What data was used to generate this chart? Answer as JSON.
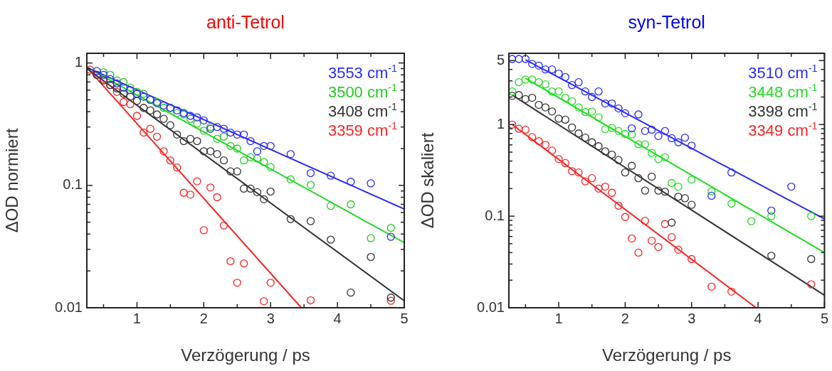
{
  "chart_data": [
    {
      "type": "scatter",
      "title": "anti-Tetrol",
      "xlabel": "Verzögerung / ps",
      "ylabel": "ΔOD normiert",
      "log": "y",
      "marker": "circle",
      "legend": "top right",
      "xlim": [
        0.25,
        5
      ],
      "xticks": [
        {
          "value": 0.5,
          "label": null
        },
        1,
        {
          "value": 1.5,
          "label": null
        },
        2,
        {
          "value": 2.5,
          "label": null
        },
        3,
        {
          "value": 3.5,
          "label": null
        },
        4,
        {
          "value": 4.5,
          "label": null
        },
        5
      ],
      "ylim": [
        0.01,
        1.2
      ],
      "yticks": [
        0.01,
        {
          "value": 0.02,
          "label": null
        },
        {
          "value": 0.03,
          "label": null
        },
        {
          "value": 0.04,
          "label": null
        },
        {
          "value": 0.05,
          "label": null
        },
        {
          "value": 0.06,
          "label": null
        },
        {
          "value": 0.07,
          "label": null
        },
        {
          "value": 0.08,
          "label": null
        },
        {
          "value": 0.09,
          "label": null
        },
        0.1,
        {
          "value": 0.2,
          "label": null
        },
        {
          "value": 0.3,
          "label": null
        },
        {
          "value": 0.4,
          "label": null
        },
        {
          "value": 0.5,
          "label": null
        },
        {
          "value": 0.6,
          "label": null
        },
        {
          "value": 0.7,
          "label": null
        },
        {
          "value": 0.8,
          "label": null
        },
        {
          "value": 0.9,
          "label": null
        },
        1
      ],
      "series": [
        {
          "name": "3553 cm$^{-1}$",
          "color": "#2b2bff",
          "x": [
            0.4,
            0.5,
            0.6,
            0.7,
            0.8,
            0.9,
            1.0,
            1.1,
            1.2,
            1.3,
            1.4,
            1.5,
            1.6,
            1.7,
            1.8,
            1.9,
            2.0,
            2.1,
            2.2,
            2.3,
            2.4,
            2.5,
            2.6,
            2.7,
            2.8,
            2.9,
            3.0,
            3.3,
            3.6,
            3.9,
            4.2,
            4.5,
            4.8
          ],
          "values": [
            0.86,
            0.8,
            0.74,
            0.68,
            0.63,
            0.6,
            0.56,
            0.53,
            0.5,
            0.47,
            0.45,
            0.43,
            0.41,
            0.39,
            0.37,
            0.36,
            0.34,
            0.29,
            0.3,
            0.29,
            0.27,
            0.26,
            0.26,
            0.23,
            0.19,
            0.21,
            0.21,
            0.18,
            0.126,
            0.12,
            0.107,
            0.104,
            0.038
          ]
        },
        {
          "name": "3500 cm$^{-1}$",
          "color": "#22cc22",
          "x": [
            0.5,
            0.6,
            0.7,
            0.8,
            0.9,
            1.0,
            1.1,
            1.2,
            1.3,
            1.4,
            1.5,
            1.6,
            1.7,
            1.8,
            1.9,
            2.0,
            2.1,
            2.2,
            2.3,
            2.4,
            2.5,
            2.6,
            2.7,
            2.8,
            2.9,
            3.0,
            3.3,
            3.6,
            3.9,
            4.2,
            4.5,
            4.8
          ],
          "values": [
            0.84,
            0.8,
            0.72,
            0.7,
            0.63,
            0.58,
            0.56,
            0.5,
            0.48,
            0.43,
            0.43,
            0.39,
            0.38,
            0.35,
            0.32,
            0.28,
            0.3,
            0.24,
            0.25,
            0.21,
            0.2,
            0.16,
            0.17,
            0.166,
            0.155,
            0.141,
            0.112,
            0.101,
            0.068,
            0.07,
            0.037,
            0.045
          ]
        },
        {
          "name": "3408 cm$^{-1}$",
          "color": "#333333",
          "x": [
            0.4,
            0.5,
            0.6,
            0.7,
            0.8,
            0.9,
            1.0,
            1.1,
            1.2,
            1.3,
            1.4,
            1.5,
            1.6,
            1.7,
            1.8,
            1.9,
            2.0,
            2.1,
            2.2,
            2.3,
            2.4,
            2.5,
            2.6,
            2.7,
            2.8,
            2.9,
            3.0,
            3.3,
            3.6,
            3.9,
            4.2,
            4.5,
            4.8
          ],
          "values": [
            0.8,
            0.72,
            0.66,
            0.62,
            0.56,
            0.53,
            0.49,
            0.43,
            0.41,
            0.38,
            0.35,
            0.31,
            0.26,
            0.23,
            0.24,
            0.23,
            0.19,
            0.19,
            0.18,
            0.16,
            0.13,
            0.13,
            0.094,
            0.094,
            0.088,
            0.077,
            0.089,
            0.053,
            0.051,
            0.036,
            0.0133,
            0.026,
            0.0121
          ]
        },
        {
          "name": "3359 cm$^{-1}$",
          "color": "#ff2222",
          "x": [
            0.3,
            0.4,
            0.5,
            0.6,
            0.7,
            0.8,
            0.9,
            1.0,
            1.1,
            1.2,
            1.3,
            1.4,
            1.5,
            1.6,
            1.7,
            1.8,
            1.9,
            2.0,
            2.1,
            2.2,
            2.3,
            2.4,
            2.5,
            2.6,
            2.9,
            3.0,
            3.6,
            4.8
          ],
          "values": [
            0.88,
            0.8,
            0.74,
            0.66,
            0.58,
            0.48,
            0.46,
            0.37,
            0.27,
            0.29,
            0.25,
            0.19,
            0.16,
            0.14,
            0.087,
            0.084,
            0.108,
            0.043,
            0.096,
            0.08,
            0.047,
            0.024,
            0.016,
            0.023,
            0.0113,
            0.016,
            0.0115,
            0.0114
          ]
        },
        {
          "type": "line",
          "marker": "none",
          "color": "#2b2bff",
          "x": [
            0.25,
            5
          ],
          "values": [
            0.92,
            0.064
          ]
        },
        {
          "type": "line",
          "marker": "none",
          "color": "#22dd22",
          "x": [
            0.25,
            5
          ],
          "values": [
            0.92,
            0.034
          ]
        },
        {
          "type": "line",
          "marker": "none",
          "color": "#333333",
          "x": [
            0.25,
            5
          ],
          "values": [
            0.9,
            0.0114
          ]
        },
        {
          "type": "line",
          "marker": "none",
          "color": "#ff2222",
          "x": [
            0.25,
            3.46
          ],
          "values": [
            0.92,
            0.01
          ]
        }
      ]
    },
    {
      "type": "scatter",
      "title": "syn-Tetrol",
      "xlabel": "Verzögerung / ps",
      "ylabel": "ΔOD skaliert",
      "log": "y",
      "marker": "circle",
      "legend": "top right",
      "xlim": [
        0.25,
        5
      ],
      "xticks": [
        {
          "value": 0.5,
          "label": null
        },
        1,
        {
          "value": 1.5,
          "label": null
        },
        2,
        {
          "value": 2.5,
          "label": null
        },
        3,
        {
          "value": 3.5,
          "label": null
        },
        4,
        {
          "value": 4.5,
          "label": null
        },
        5
      ],
      "ylim": [
        0.01,
        6
      ],
      "yticks": [
        0.01,
        {
          "value": 0.02,
          "label": null
        },
        {
          "value": 0.03,
          "label": null
        },
        {
          "value": 0.04,
          "label": null
        },
        {
          "value": 0.05,
          "label": null
        },
        {
          "value": 0.06,
          "label": null
        },
        {
          "value": 0.07,
          "label": null
        },
        {
          "value": 0.08,
          "label": null
        },
        {
          "value": 0.09,
          "label": null
        },
        0.1,
        {
          "value": 0.2,
          "label": null
        },
        {
          "value": 0.3,
          "label": null
        },
        {
          "value": 0.4,
          "label": null
        },
        {
          "value": 0.5,
          "label": null
        },
        {
          "value": 0.6,
          "label": null
        },
        {
          "value": 0.7,
          "label": null
        },
        {
          "value": 0.8,
          "label": null
        },
        {
          "value": 0.9,
          "label": null
        },
        1,
        {
          "value": 2,
          "label": null
        },
        {
          "value": 3,
          "label": null
        },
        {
          "value": 4,
          "label": null
        },
        5
      ],
      "series": [
        {
          "name": "3510 cm$^{-1}$",
          "color": "#2b2bff",
          "x": [
            0.3,
            0.4,
            0.5,
            0.6,
            0.7,
            0.8,
            0.9,
            1.0,
            1.1,
            1.2,
            1.3,
            1.4,
            1.5,
            1.6,
            1.7,
            1.8,
            1.9,
            2.0,
            2.1,
            2.2,
            2.3,
            2.4,
            2.5,
            2.6,
            2.7,
            2.8,
            2.9,
            3.0,
            3.3,
            3.6,
            4.2,
            4.5
          ],
          "values": [
            5.2,
            5.2,
            5.2,
            4.6,
            4.4,
            4.0,
            4.0,
            3.6,
            3.3,
            2.7,
            2.9,
            2.3,
            2.0,
            2.3,
            1.7,
            1.7,
            1.5,
            1.33,
            0.91,
            1.29,
            0.85,
            0.88,
            0.75,
            0.85,
            0.71,
            0.64,
            0.72,
            0.59,
            0.167,
            0.3,
            0.115,
            0.21
          ]
        },
        {
          "name": "3448 cm$^{-1}$",
          "color": "#22dd22",
          "x": [
            0.3,
            0.4,
            0.5,
            0.6,
            0.7,
            0.8,
            0.9,
            1.0,
            1.1,
            1.2,
            1.3,
            1.4,
            1.5,
            1.6,
            1.7,
            1.8,
            1.9,
            2.0,
            2.1,
            2.2,
            2.3,
            2.4,
            2.5,
            2.6,
            2.7,
            2.8,
            3.0,
            3.3,
            3.6,
            3.9,
            4.2,
            4.8
          ],
          "values": [
            2.3,
            2.9,
            3.1,
            3.1,
            2.9,
            2.75,
            2.3,
            2.3,
            1.96,
            1.8,
            1.54,
            1.37,
            1.39,
            1.2,
            0.89,
            0.92,
            0.85,
            0.79,
            0.78,
            0.61,
            0.61,
            0.49,
            0.42,
            0.44,
            0.23,
            0.21,
            0.25,
            0.186,
            0.137,
            0.088,
            0.1,
            0.1
          ]
        },
        {
          "name": "3398 cm$^{-1}$",
          "color": "#333333",
          "x": [
            0.3,
            0.4,
            0.5,
            0.6,
            0.7,
            0.8,
            0.9,
            1.0,
            1.1,
            1.2,
            1.3,
            1.4,
            1.5,
            1.6,
            1.7,
            1.8,
            1.9,
            2.0,
            2.1,
            2.2,
            2.3,
            2.4,
            2.5,
            2.6,
            2.7,
            2.8,
            2.9,
            3.0,
            4.2,
            4.8
          ],
          "values": [
            2.06,
            2.1,
            1.9,
            1.96,
            1.64,
            1.54,
            1.39,
            1.16,
            1.13,
            0.93,
            0.8,
            0.72,
            0.64,
            0.58,
            0.51,
            0.47,
            0.41,
            0.3,
            0.355,
            0.26,
            0.19,
            0.27,
            0.19,
            0.185,
            0.085,
            0.163,
            0.157,
            0.133,
            0.037,
            0.034
          ]
        },
        {
          "name": "3349 cm$^{-1}$",
          "color": "#ff2222",
          "x": [
            0.3,
            0.4,
            0.5,
            0.6,
            0.7,
            0.8,
            0.9,
            1.0,
            1.1,
            1.2,
            1.3,
            1.4,
            1.5,
            1.6,
            1.7,
            1.8,
            1.9,
            2.0,
            2.1,
            2.2,
            2.3,
            2.4,
            2.5,
            2.6,
            2.7,
            2.8,
            3.0,
            3.3,
            3.6,
            4.8
          ],
          "values": [
            1.0,
            0.9,
            0.88,
            0.73,
            0.66,
            0.6,
            0.52,
            0.42,
            0.38,
            0.31,
            0.3,
            0.24,
            0.26,
            0.2,
            0.21,
            0.18,
            0.13,
            0.098,
            0.057,
            0.04,
            0.089,
            0.054,
            0.046,
            0.082,
            0.059,
            0.043,
            0.034,
            0.017,
            0.015,
            0.018
          ]
        },
        {
          "type": "line",
          "marker": "none",
          "color": "#2b2bff",
          "x": [
            0.5,
            5
          ],
          "values": [
            5.1,
            0.093
          ]
        },
        {
          "type": "line",
          "marker": "none",
          "color": "#22dd22",
          "x": [
            0.5,
            5
          ],
          "values": [
            3.2,
            0.04
          ]
        },
        {
          "type": "line",
          "marker": "none",
          "color": "#333333",
          "x": [
            0.3,
            5
          ],
          "values": [
            2.1,
            0.0137
          ]
        },
        {
          "type": "line",
          "marker": "none",
          "color": "#ff2222",
          "x": [
            0.3,
            3.97
          ],
          "values": [
            1.0,
            0.01
          ]
        }
      ]
    }
  ]
}
